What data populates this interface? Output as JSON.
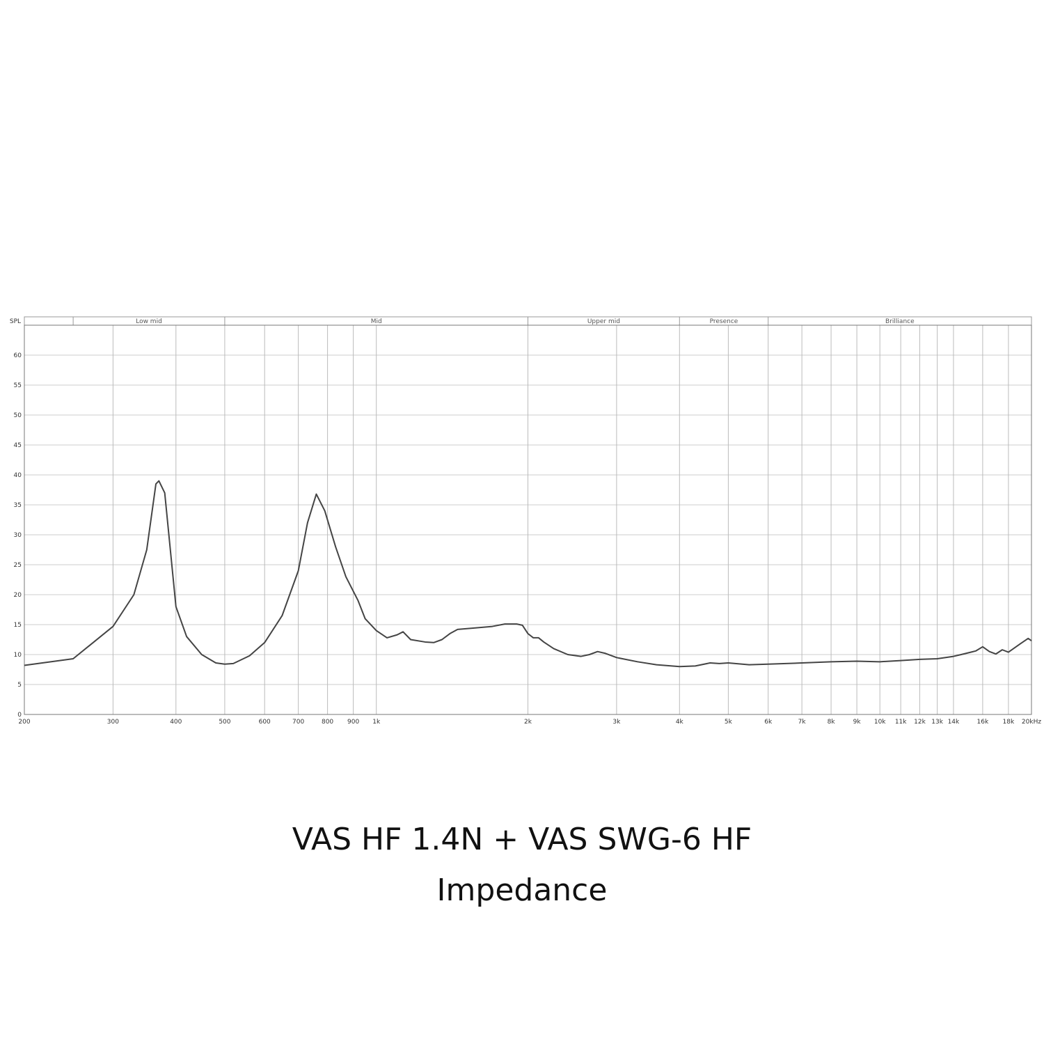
{
  "chart_data": {
    "type": "line",
    "title": "VAS HF 1.4N + VAS SWG-6 HF",
    "subtitle": "Impedance",
    "y_label": "SPL",
    "xscale": "log",
    "grid": true,
    "xlim": [
      200,
      20000
    ],
    "ylim": [
      0,
      65
    ],
    "yticks": [
      0,
      5,
      10,
      15,
      20,
      25,
      30,
      35,
      40,
      45,
      50,
      55,
      60
    ],
    "xticks": [
      200,
      300,
      400,
      500,
      600,
      700,
      800,
      900,
      {
        "value": 1000,
        "label": "1k"
      },
      {
        "value": 2000,
        "label": "2k"
      },
      {
        "value": 3000,
        "label": "3k"
      },
      {
        "value": 4000,
        "label": "4k"
      },
      {
        "value": 5000,
        "label": "5k"
      },
      {
        "value": 6000,
        "label": "6k"
      },
      {
        "value": 7000,
        "label": "7k"
      },
      {
        "value": 8000,
        "label": "8k"
      },
      {
        "value": 9000,
        "label": "9k"
      },
      {
        "value": 10000,
        "label": "10k"
      },
      {
        "value": 11000,
        "label": "11k"
      },
      {
        "value": 12000,
        "label": "12k"
      },
      {
        "value": 13000,
        "label": "13k"
      },
      {
        "value": 14000,
        "label": "14k"
      },
      {
        "value": 16000,
        "label": "16k"
      },
      {
        "value": 18000,
        "label": "18k"
      },
      {
        "value": 20000,
        "label": "20kHz"
      }
    ],
    "bands": [
      {
        "label": "Low mid",
        "from": 250,
        "to": 500
      },
      {
        "label": "Mid",
        "from": 500,
        "to": 2000
      },
      {
        "label": "Upper mid",
        "from": 2000,
        "to": 4000
      },
      {
        "label": "Presence",
        "from": 4000,
        "to": 6000
      },
      {
        "label": "Brilliance",
        "from": 6000,
        "to": 20000
      }
    ],
    "x": [
      200,
      250,
      300,
      330,
      350,
      365,
      370,
      380,
      400,
      420,
      450,
      480,
      500,
      520,
      560,
      600,
      650,
      700,
      730,
      760,
      790,
      830,
      870,
      920,
      950,
      1000,
      1050,
      1100,
      1130,
      1170,
      1250,
      1300,
      1350,
      1400,
      1450,
      1550,
      1700,
      1800,
      1900,
      1950,
      2000,
      2050,
      2100,
      2150,
      2250,
      2400,
      2550,
      2650,
      2750,
      2850,
      3000,
      3300,
      3600,
      4000,
      4300,
      4600,
      4800,
      5000,
      5500,
      6000,
      7000,
      8000,
      9000,
      10000,
      11000,
      12000,
      13000,
      14000,
      14500,
      15500,
      16000,
      16500,
      17000,
      17500,
      18000,
      19000,
      19700,
      20000
    ],
    "series": [
      {
        "color": "#444444",
        "values": [
          8.2,
          9.3,
          14.7,
          20,
          27.5,
          38.5,
          39,
          37,
          18,
          13,
          10,
          8.6,
          8.4,
          8.5,
          9.8,
          12,
          16.5,
          24,
          32,
          36.8,
          34,
          28,
          23,
          19,
          16,
          14,
          12.8,
          13.3,
          13.8,
          12.5,
          12.1,
          12,
          12.5,
          13.5,
          14.2,
          14.4,
          14.7,
          15.1,
          15.1,
          14.9,
          13.5,
          12.8,
          12.8,
          12.1,
          11,
          10,
          9.7,
          10,
          10.5,
          10.2,
          9.5,
          8.8,
          8.3,
          8,
          8.1,
          8.6,
          8.5,
          8.6,
          8.3,
          8.4,
          8.6,
          8.8,
          8.9,
          8.8,
          9,
          9.2,
          9.3,
          9.7,
          10,
          10.6,
          11.3,
          10.5,
          10.1,
          10.8,
          10.4,
          11.8,
          12.7,
          12.3
        ]
      }
    ]
  }
}
